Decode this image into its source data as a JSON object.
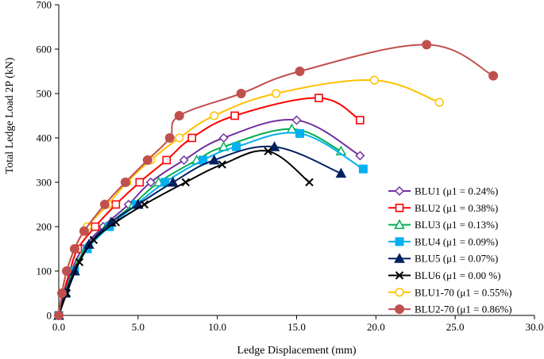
{
  "chart_data": {
    "type": "line",
    "title": "",
    "xlabel": "Ledge Displacement (mm)",
    "ylabel": "Total Ledge Load 2P (kN)",
    "xlim": [
      0,
      30
    ],
    "ylim": [
      0,
      700
    ],
    "xticks": [
      0,
      5,
      10,
      15,
      20,
      25,
      30
    ],
    "yticks": [
      0,
      100,
      200,
      300,
      400,
      500,
      600,
      700
    ],
    "xtick_labels": [
      "0.0",
      "5.0",
      "10.0",
      "15.0",
      "20.0",
      "25.0",
      "30.0"
    ],
    "ytick_labels": [
      "0",
      "100",
      "200",
      "300",
      "400",
      "500",
      "600",
      "700"
    ],
    "grid": false,
    "legend_position": "center-right",
    "series": [
      {
        "name": "BLU1",
        "legend_label": "BLU1 (μ1 = 0.24%)",
        "color": "#7030a0",
        "marker": "diamond-open",
        "x": [
          0,
          0.3,
          0.8,
          1.5,
          2.8,
          4.4,
          5.8,
          7.9,
          10.4,
          15.0,
          19.0
        ],
        "y": [
          0,
          50,
          100,
          150,
          200,
          250,
          300,
          350,
          400,
          440,
          360
        ]
      },
      {
        "name": "BLU2",
        "legend_label": "BLU2 (μ1 = 0.38%)",
        "color": "#ff0000",
        "marker": "square-open",
        "x": [
          0,
          0.3,
          0.7,
          1.2,
          2.3,
          3.6,
          5.1,
          6.8,
          8.4,
          11.1,
          16.4,
          19.0
        ],
        "y": [
          0,
          50,
          100,
          150,
          200,
          250,
          300,
          350,
          400,
          450,
          490,
          440
        ]
      },
      {
        "name": "BLU3",
        "legend_label": "BLU3 (μ1 = 0.13%)",
        "color": "#00b050",
        "marker": "triangle-open",
        "x": [
          0,
          0.4,
          0.9,
          1.7,
          3.0,
          4.7,
          6.3,
          8.7,
          10.4,
          14.7,
          17.8
        ],
        "y": [
          0,
          50,
          100,
          150,
          200,
          250,
          300,
          350,
          380,
          420,
          370
        ]
      },
      {
        "name": "BLU4",
        "legend_label": "BLU4 (μ1 = 0.09%)",
        "color": "#00b0f0",
        "marker": "square-filled",
        "x": [
          0,
          0.4,
          1.0,
          1.8,
          3.2,
          4.9,
          6.7,
          9.1,
          11.2,
          15.2,
          19.2
        ],
        "y": [
          0,
          50,
          100,
          150,
          200,
          250,
          300,
          350,
          380,
          410,
          330
        ]
      },
      {
        "name": "BLU5",
        "legend_label": "BLU5 (μ1 = 0.07%)",
        "color": "#002060",
        "marker": "triangle-filled",
        "x": [
          0,
          0.4,
          1.0,
          1.9,
          3.3,
          5.0,
          7.2,
          9.8,
          13.6,
          17.8
        ],
        "y": [
          0,
          50,
          100,
          160,
          210,
          250,
          300,
          350,
          380,
          320
        ]
      },
      {
        "name": "BLU6",
        "legend_label": "BLU6 (μ1 = 0.00 %)",
        "color": "#000000",
        "marker": "x",
        "x": [
          0,
          0.5,
          1.3,
          2.2,
          3.6,
          5.4,
          8.0,
          10.3,
          13.2,
          15.8
        ],
        "y": [
          0,
          50,
          120,
          170,
          210,
          250,
          300,
          340,
          370,
          300
        ]
      },
      {
        "name": "BLU1-70",
        "legend_label": "BLU1-70 (μ1 = 0.55%)",
        "color": "#ffc000",
        "marker": "circle-open",
        "x": [
          0,
          0.2,
          0.5,
          1.0,
          1.8,
          3.1,
          4.3,
          5.8,
          7.6,
          9.8,
          13.7,
          19.9,
          24.0
        ],
        "y": [
          0,
          50,
          100,
          150,
          200,
          250,
          300,
          350,
          400,
          450,
          500,
          530,
          480
        ]
      },
      {
        "name": "BLU2-70",
        "legend_label": "BLU2-70 (μ1 = 0.86%)",
        "color": "#c0504d",
        "marker": "circle-filled",
        "x": [
          0,
          0.2,
          0.5,
          1.0,
          1.6,
          2.9,
          4.2,
          5.6,
          7.0,
          7.6,
          11.5,
          15.2,
          23.2,
          27.4
        ],
        "y": [
          0,
          50,
          100,
          150,
          190,
          250,
          300,
          350,
          400,
          450,
          500,
          550,
          610,
          540
        ]
      }
    ]
  }
}
